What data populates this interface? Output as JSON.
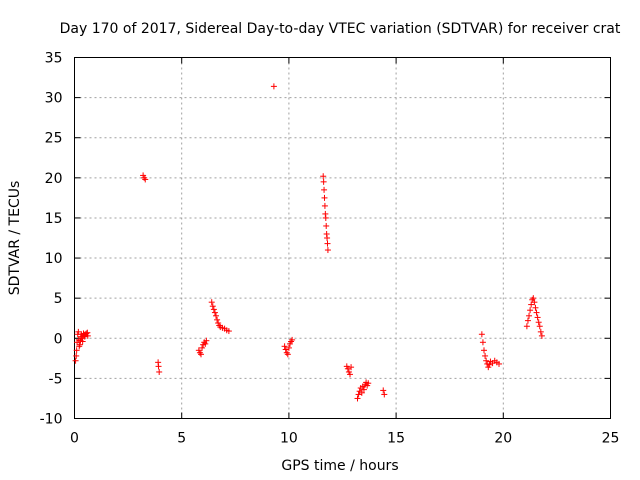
{
  "chart_data": {
    "type": "scatter",
    "title": "Day 170 of 2017, Sidereal Day-to-day VTEC variation (SDTVAR) for receiver crat",
    "xlabel": "GPS time / hours",
    "ylabel": "SDTVAR / TECUs",
    "xlim": [
      0,
      25
    ],
    "ylim": [
      -10,
      35
    ],
    "xticks": [
      0,
      5,
      10,
      15,
      20,
      25
    ],
    "yticks": [
      -10,
      -5,
      0,
      5,
      10,
      15,
      20,
      25,
      30,
      35
    ],
    "grid": true,
    "marker": "plus",
    "color": "#ff0000",
    "series": [
      {
        "name": "SDTVAR",
        "x": [
          0.05,
          0.08,
          0.1,
          0.12,
          0.15,
          0.18,
          0.2,
          0.22,
          0.25,
          0.28,
          0.3,
          0.32,
          0.35,
          0.38,
          0.4,
          0.42,
          0.45,
          0.48,
          0.5,
          0.55,
          0.6,
          0.62,
          3.2,
          3.25,
          3.3,
          3.9,
          3.92,
          3.95,
          5.8,
          5.85,
          5.9,
          5.95,
          6.0,
          6.05,
          6.1,
          6.15,
          6.4,
          6.45,
          6.5,
          6.55,
          6.6,
          6.65,
          6.7,
          6.75,
          6.8,
          6.9,
          7.0,
          7.1,
          7.2,
          9.3,
          9.8,
          9.85,
          9.9,
          9.95,
          10.0,
          10.05,
          10.1,
          10.15,
          11.6,
          11.62,
          11.64,
          11.66,
          11.68,
          11.7,
          11.72,
          11.74,
          11.76,
          11.78,
          11.8,
          11.82,
          12.7,
          12.75,
          12.8,
          12.85,
          12.9,
          13.2,
          13.25,
          13.3,
          13.35,
          13.4,
          13.45,
          13.5,
          13.55,
          13.6,
          13.65,
          13.7,
          14.4,
          14.45,
          19.0,
          19.05,
          19.1,
          19.15,
          19.2,
          19.25,
          19.3,
          19.35,
          19.4,
          19.5,
          19.6,
          19.7,
          19.8,
          21.1,
          21.15,
          21.2,
          21.25,
          21.3,
          21.35,
          21.4,
          21.45,
          21.5,
          21.55,
          21.6,
          21.65,
          21.7,
          21.75,
          21.8
        ],
        "y": [
          -2.8,
          -2.2,
          -1.5,
          -0.5,
          0.5,
          0.8,
          -0.2,
          -1.0,
          -0.8,
          -0.3,
          0.2,
          0.5,
          0.0,
          -0.4,
          0.3,
          0.6,
          0.4,
          0.2,
          0.5,
          0.6,
          0.7,
          0.3,
          20.3,
          20.0,
          19.8,
          -3.0,
          -3.5,
          -4.2,
          -1.5,
          -1.8,
          -2.0,
          -1.2,
          -0.8,
          -0.5,
          -0.7,
          -0.3,
          4.5,
          4.0,
          3.6,
          3.2,
          2.8,
          2.3,
          1.9,
          1.6,
          1.4,
          1.3,
          1.2,
          1.0,
          0.9,
          31.4,
          -1.0,
          -1.4,
          -1.8,
          -2.0,
          -1.2,
          -0.7,
          -0.4,
          -0.2,
          20.2,
          19.5,
          18.5,
          17.5,
          16.5,
          15.5,
          15.0,
          14.0,
          13.0,
          12.5,
          11.8,
          11.0,
          -3.5,
          -3.8,
          -4.2,
          -4.5,
          -3.6,
          -7.5,
          -7.0,
          -6.6,
          -6.2,
          -6.8,
          -6.0,
          -6.4,
          -5.8,
          -5.5,
          -5.9,
          -5.6,
          -6.5,
          -7.0,
          0.5,
          -0.5,
          -1.5,
          -2.2,
          -2.8,
          -3.2,
          -3.6,
          -3.3,
          -2.9,
          -3.1,
          -2.8,
          -3.0,
          -3.2,
          1.5,
          2.2,
          2.8,
          3.5,
          4.2,
          4.8,
          5.0,
          4.5,
          3.8,
          3.2,
          2.6,
          2.0,
          1.5,
          0.8,
          0.3
        ]
      }
    ]
  }
}
